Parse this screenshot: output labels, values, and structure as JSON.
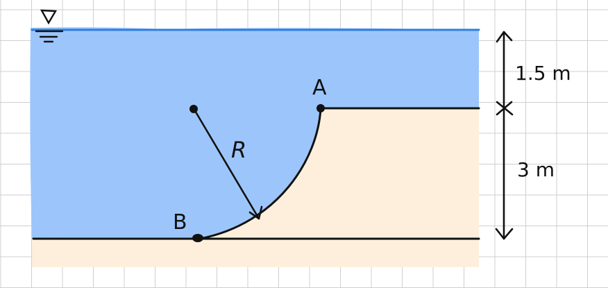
{
  "diagram": {
    "point_a_label": "A",
    "point_b_label": "B",
    "radius_label": "R",
    "dim_upper": "1.5 m",
    "dim_lower": "3 m",
    "free_surface_icon": "free-surface-triangle-icon"
  },
  "colors": {
    "grid": "#cfcfd4",
    "water": "#9cc6fb",
    "water_surface": "#2f7fe0",
    "soil": "#fdefdc",
    "ink": "#111111"
  }
}
